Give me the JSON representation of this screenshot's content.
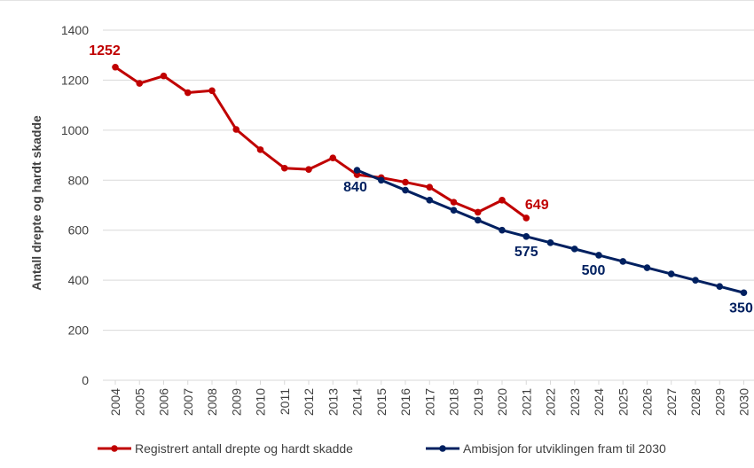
{
  "chart_data": {
    "type": "line",
    "title": "",
    "xlabel": "",
    "ylabel": "Antall drepte og hardt skadde",
    "ylim": [
      0,
      1400
    ],
    "y_ticks": [
      0,
      200,
      400,
      600,
      800,
      1000,
      1200,
      1400
    ],
    "grid": "horizontal",
    "legend_position": "bottom",
    "categories": [
      "2004",
      "2005",
      "2006",
      "2007",
      "2008",
      "2009",
      "2010",
      "2011",
      "2012",
      "2013",
      "2014",
      "2015",
      "2016",
      "2017",
      "2018",
      "2019",
      "2020",
      "2021",
      "2022",
      "2023",
      "2024",
      "2025",
      "2026",
      "2027",
      "2028",
      "2029",
      "2030"
    ],
    "series": [
      {
        "name": "Registrert antall drepte og hardt skadde",
        "color": "#c00000",
        "x": [
          "2004",
          "2005",
          "2006",
          "2007",
          "2008",
          "2009",
          "2010",
          "2011",
          "2012",
          "2013",
          "2014",
          "2015",
          "2016",
          "2017",
          "2018",
          "2019",
          "2020",
          "2021"
        ],
        "values": [
          1252,
          1187,
          1217,
          1150,
          1158,
          1003,
          922,
          848,
          843,
          889,
          822,
          810,
          792,
          772,
          712,
          672,
          720,
          649
        ]
      },
      {
        "name": "Ambisjon for utviklingen fram til 2030",
        "color": "#002060",
        "x": [
          "2014",
          "2015",
          "2016",
          "2017",
          "2018",
          "2019",
          "2020",
          "2021",
          "2022",
          "2023",
          "2024",
          "2025",
          "2026",
          "2027",
          "2028",
          "2029",
          "2030"
        ],
        "values": [
          840,
          800,
          760,
          720,
          680,
          640,
          600,
          575,
          550,
          525,
          500,
          475,
          450,
          425,
          400,
          375,
          350
        ]
      }
    ],
    "annotations": [
      {
        "text": "1252",
        "x": "2004",
        "series": 0
      },
      {
        "text": "649",
        "x": "2021",
        "series": 0
      },
      {
        "text": "840",
        "x": "2014",
        "series": 1
      },
      {
        "text": "575",
        "x": "2021",
        "series": 1
      },
      {
        "text": "500",
        "x": "2024",
        "series": 1
      },
      {
        "text": "350",
        "x": "2030",
        "series": 1
      }
    ]
  }
}
